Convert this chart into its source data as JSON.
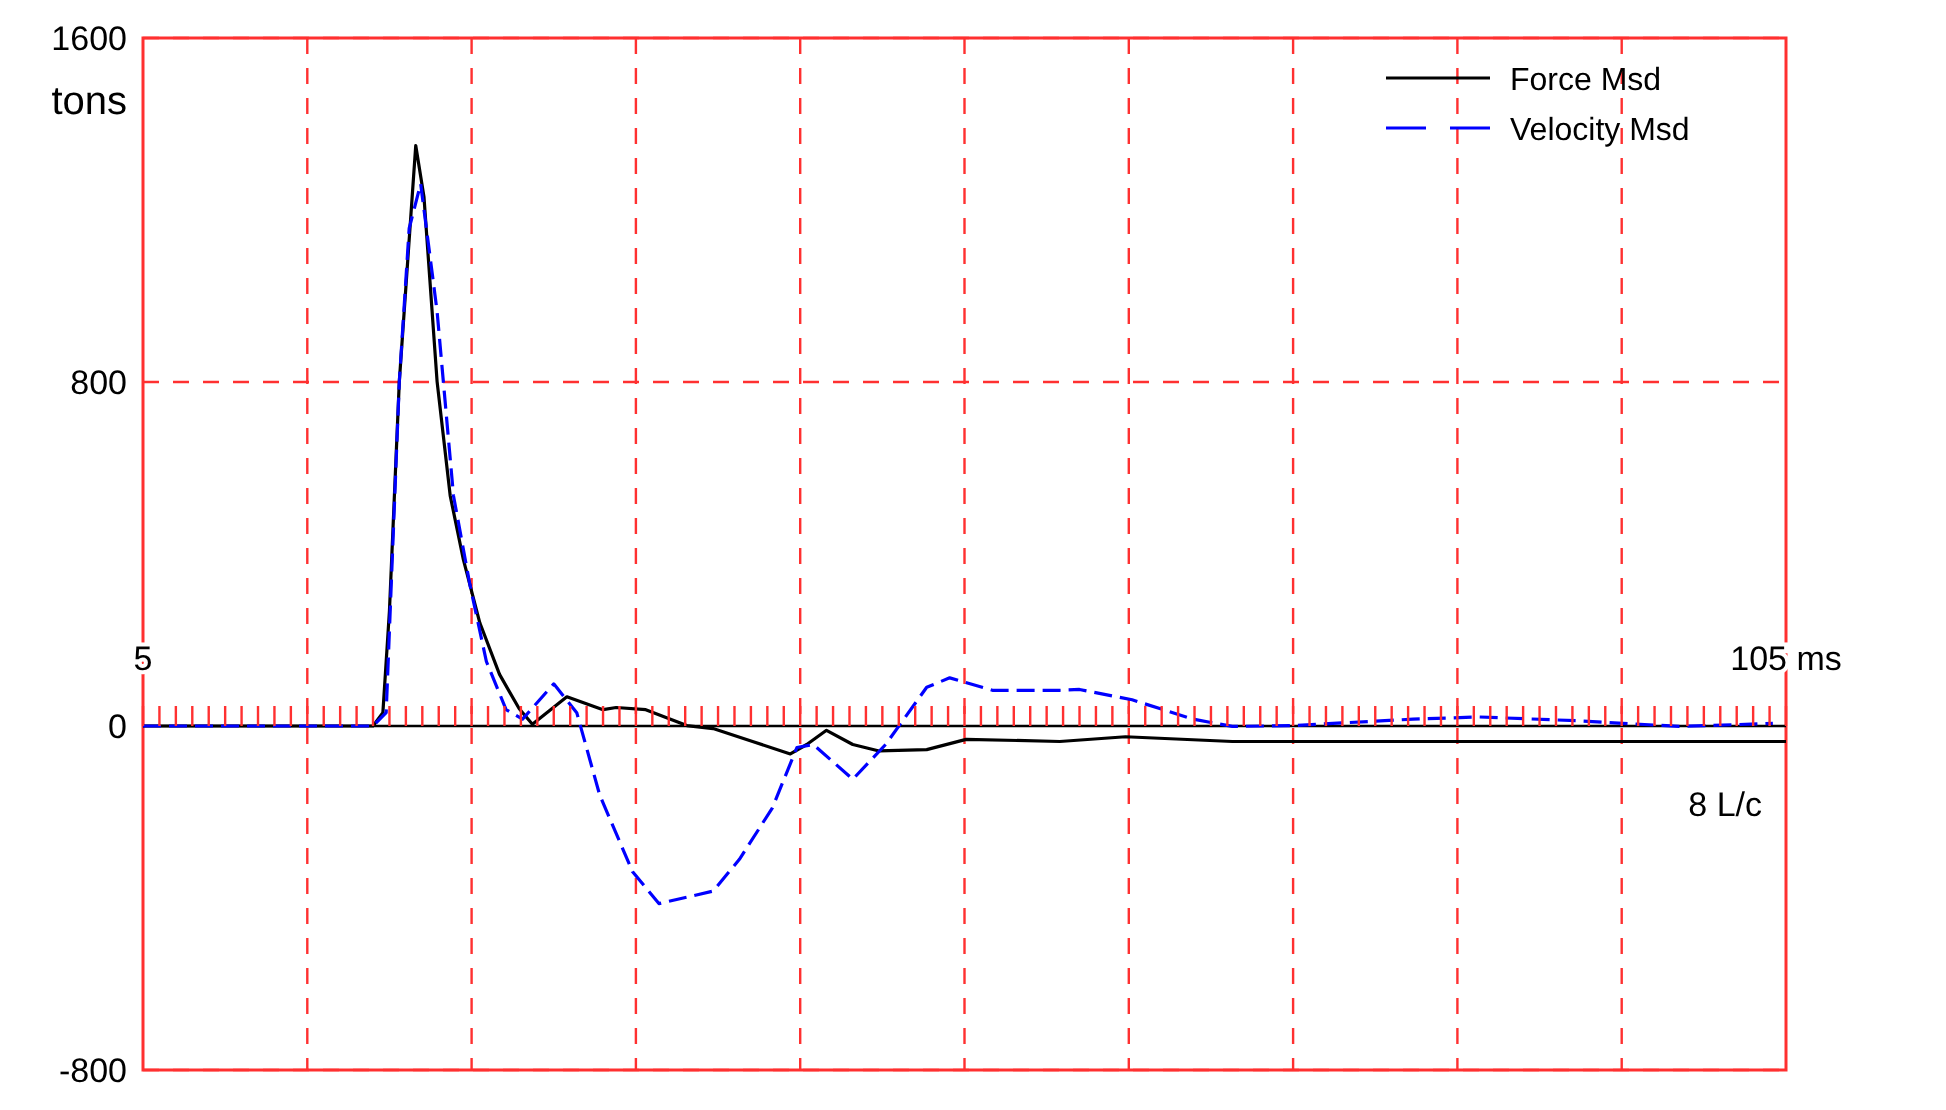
{
  "chart_data": {
    "type": "line",
    "ylabel": "tons",
    "xlim": [
      5,
      105
    ],
    "xticks": [
      {
        "value": 5,
        "label": "5"
      },
      {
        "value": 6,
        "label": null
      },
      {
        "value": 7,
        "label": null
      },
      {
        "value": 8,
        "label": null
      },
      {
        "value": 9,
        "label": null
      },
      {
        "value": 10,
        "label": null
      },
      {
        "value": 11,
        "label": null
      },
      {
        "value": 12,
        "label": null
      },
      {
        "value": 13,
        "label": null
      },
      {
        "value": 14,
        "label": null
      },
      {
        "value": 15,
        "label": null
      },
      {
        "value": 16,
        "label": null
      },
      {
        "value": 17,
        "label": null
      },
      {
        "value": 18,
        "label": null
      },
      {
        "value": 19,
        "label": null
      },
      {
        "value": 20,
        "label": null
      },
      {
        "value": 21,
        "label": null
      },
      {
        "value": 22,
        "label": null
      },
      {
        "value": 23,
        "label": null
      },
      {
        "value": 24,
        "label": null
      },
      {
        "value": 25,
        "label": null
      },
      {
        "value": 26,
        "label": null
      },
      {
        "value": 27,
        "label": null
      },
      {
        "value": 28,
        "label": null
      },
      {
        "value": 29,
        "label": null
      },
      {
        "value": 30,
        "label": null
      },
      {
        "value": 31,
        "label": null
      },
      {
        "value": 32,
        "label": null
      },
      {
        "value": 33,
        "label": null
      },
      {
        "value": 34,
        "label": null
      },
      {
        "value": 35,
        "label": null
      },
      {
        "value": 36,
        "label": null
      },
      {
        "value": 37,
        "label": null
      },
      {
        "value": 38,
        "label": null
      },
      {
        "value": 39,
        "label": null
      },
      {
        "value": 40,
        "label": null
      },
      {
        "value": 41,
        "label": null
      },
      {
        "value": 42,
        "label": null
      },
      {
        "value": 43,
        "label": null
      },
      {
        "value": 44,
        "label": null
      },
      {
        "value": 45,
        "label": null
      },
      {
        "value": 46,
        "label": null
      },
      {
        "value": 47,
        "label": null
      },
      {
        "value": 48,
        "label": null
      },
      {
        "value": 49,
        "label": null
      },
      {
        "value": 50,
        "label": null
      },
      {
        "value": 51,
        "label": null
      },
      {
        "value": 52,
        "label": null
      },
      {
        "value": 53,
        "label": null
      },
      {
        "value": 54,
        "label": null
      },
      {
        "value": 55,
        "label": null
      },
      {
        "value": 56,
        "label": null
      },
      {
        "value": 57,
        "label": null
      },
      {
        "value": 58,
        "label": null
      },
      {
        "value": 59,
        "label": null
      },
      {
        "value": 60,
        "label": null
      },
      {
        "value": 61,
        "label": null
      },
      {
        "value": 62,
        "label": null
      },
      {
        "value": 63,
        "label": null
      },
      {
        "value": 64,
        "label": null
      },
      {
        "value": 65,
        "label": null
      },
      {
        "value": 66,
        "label": null
      },
      {
        "value": 67,
        "label": null
      },
      {
        "value": 68,
        "label": null
      },
      {
        "value": 69,
        "label": null
      },
      {
        "value": 70,
        "label": null
      },
      {
        "value": 71,
        "label": null
      },
      {
        "value": 72,
        "label": null
      },
      {
        "value": 73,
        "label": null
      },
      {
        "value": 74,
        "label": null
      },
      {
        "value": 75,
        "label": null
      },
      {
        "value": 76,
        "label": null
      },
      {
        "value": 77,
        "label": null
      },
      {
        "value": 78,
        "label": null
      },
      {
        "value": 79,
        "label": null
      },
      {
        "value": 80,
        "label": null
      },
      {
        "value": 81,
        "label": null
      },
      {
        "value": 82,
        "label": null
      },
      {
        "value": 83,
        "label": null
      },
      {
        "value": 84,
        "label": null
      },
      {
        "value": 85,
        "label": null
      },
      {
        "value": 86,
        "label": null
      },
      {
        "value": 87,
        "label": null
      },
      {
        "value": 88,
        "label": null
      },
      {
        "value": 89,
        "label": null
      },
      {
        "value": 90,
        "label": null
      },
      {
        "value": 91,
        "label": null
      },
      {
        "value": 92,
        "label": null
      },
      {
        "value": 93,
        "label": null
      },
      {
        "value": 94,
        "label": null
      },
      {
        "value": 95,
        "label": null
      },
      {
        "value": 96,
        "label": null
      },
      {
        "value": 97,
        "label": null
      },
      {
        "value": 98,
        "label": null
      },
      {
        "value": 99,
        "label": null
      },
      {
        "value": 100,
        "label": null
      },
      {
        "value": 101,
        "label": null
      },
      {
        "value": 102,
        "label": null
      },
      {
        "value": 103,
        "label": null
      },
      {
        "value": 104,
        "label": null
      },
      {
        "value": 105,
        "label": "105 ms"
      }
    ],
    "ylim": [
      -800,
      1600
    ],
    "yticks": [
      -800,
      0,
      800,
      1600
    ],
    "grid": true,
    "legend": "top right",
    "marker": "none",
    "annotations": [
      "8 L/c"
    ],
    "series": [
      {
        "name": "Force Msd",
        "color": "#000000",
        "line_style": "solid",
        "x": [
          5,
          19,
          19.6,
          20.0,
          20.6,
          21.6,
          22.1,
          22.9,
          23.7,
          24.5,
          25.5,
          26.7,
          27.9,
          28.7,
          30.8,
          33.0,
          33.8,
          35.6,
          38.1,
          39.7,
          42.1,
          44.4,
          45.4,
          46.6,
          48.2,
          49.8,
          52.7,
          55.1,
          60.8,
          64.8,
          71.3,
          105
        ],
        "values": [
          0,
          0,
          31,
          268,
          801,
          1350,
          1231,
          801,
          535,
          387,
          240,
          120,
          40,
          4,
          68,
          38,
          43,
          38,
          1,
          -6,
          -36,
          -65,
          -43,
          -10,
          -43,
          -58,
          -55,
          -31,
          -36,
          -25,
          -36,
          -36
        ]
      },
      {
        "name": "Velocity Msd",
        "color": "#0000ff",
        "line_style": "dashed",
        "x": [
          5,
          19,
          19.8,
          20.6,
          21.2,
          21.9,
          22.9,
          23.9,
          24.9,
          25.9,
          27.1,
          28.1,
          30.0,
          31.4,
          32.8,
          34.8,
          36.4,
          39.7,
          41.3,
          43.3,
          44.8,
          45.8,
          48.2,
          50.2,
          52.7,
          54.1,
          56.7,
          60.8,
          62,
          65.2,
          68.9,
          71.3,
          75,
          82.3,
          86.3,
          92.4,
          98.5,
          104.2
        ],
        "values": [
          0,
          0,
          31,
          801,
          1157,
          1261,
          964,
          535,
          328,
          150,
          38,
          16,
          98,
          31,
          -161,
          -339,
          -413,
          -384,
          -310,
          -191,
          -50,
          -43,
          -124,
          -43,
          90,
          112,
          83,
          83,
          85,
          61,
          16,
          -1,
          1,
          16,
          21,
          12,
          -1,
          6
        ]
      }
    ]
  }
}
